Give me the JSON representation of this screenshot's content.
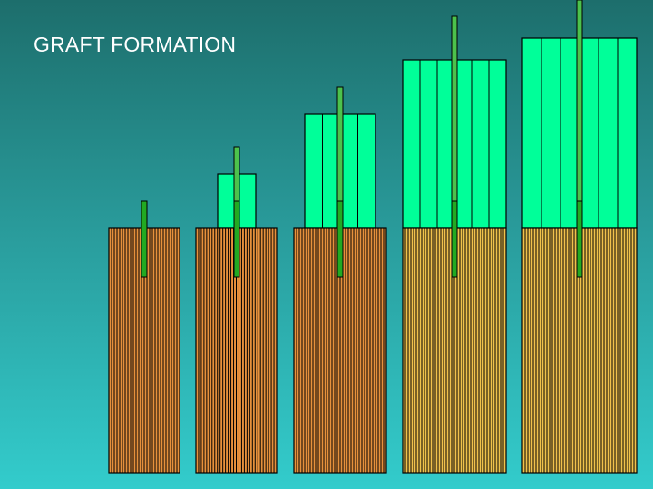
{
  "slide": {
    "title": "GRAFT FORMATION"
  },
  "colors": {
    "background_top": "#1d6e6c",
    "background_bottom": "#33cccc",
    "graft_fill": "#00ff99",
    "root_fill_dark": "#e7913c",
    "root_fill_light": "#f0c24c",
    "stripe": "#000000",
    "graft_stem": "#4cc24c",
    "root_stem": "#22aa22"
  },
  "stages": [
    {
      "name": "stage-1",
      "graft": false,
      "root_shade": "dark"
    },
    {
      "name": "stage-2",
      "graft": true,
      "root_shade": "dark"
    },
    {
      "name": "stage-3",
      "graft": true,
      "root_shade": "dark"
    },
    {
      "name": "stage-4",
      "graft": true,
      "root_shade": "light"
    },
    {
      "name": "stage-5",
      "graft": true,
      "root_shade": "light"
    }
  ]
}
